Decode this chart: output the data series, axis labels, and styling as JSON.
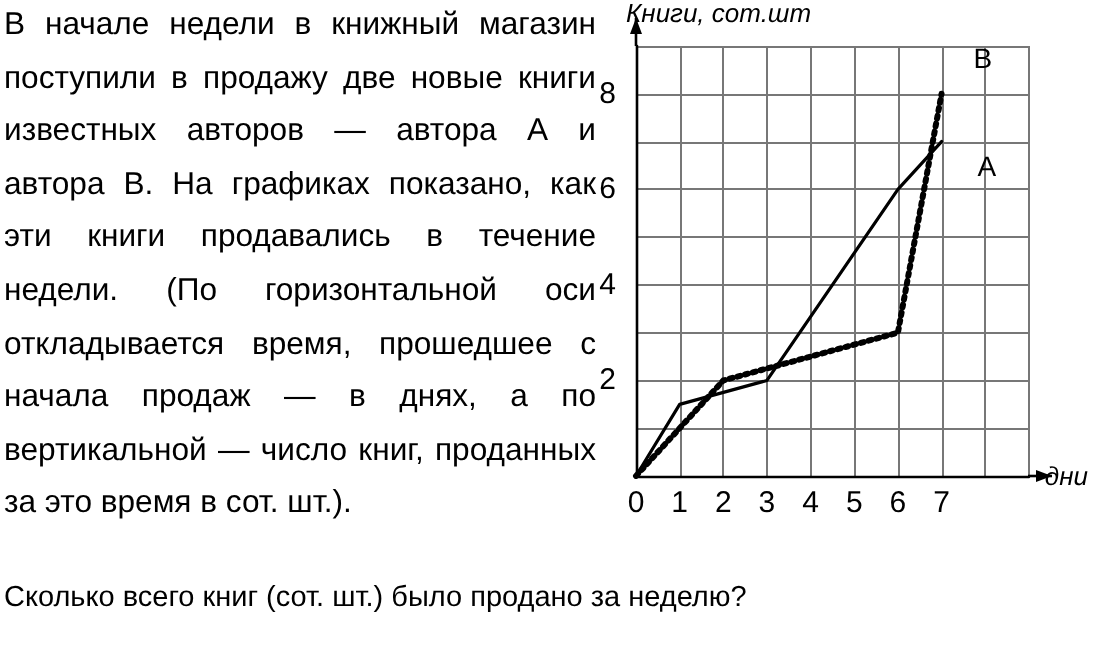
{
  "chart_data": {
    "type": "line",
    "xlabel": "дни",
    "ylabel": "Книги, сот.шт",
    "series": [
      {
        "name": "A",
        "color": "#000000",
        "line_style": "solid",
        "x": [
          0,
          1,
          3,
          6,
          7
        ],
        "values": [
          0,
          1.5,
          2,
          6,
          7
        ]
      },
      {
        "name": "B",
        "color": "#000000",
        "line_style": "dotted",
        "x": [
          0,
          1,
          2,
          6,
          7
        ],
        "values": [
          0,
          1,
          2,
          3,
          8
        ]
      }
    ],
    "xlim": [
      0,
      9
    ],
    "ylim": [
      0,
      9
    ],
    "xticks": [
      0,
      1,
      2,
      3,
      4,
      5,
      6,
      7,
      {
        "value": 8,
        "label": null
      },
      {
        "value": 9,
        "label": null
      }
    ],
    "yticks": [
      {
        "value": 0,
        "label": null
      },
      {
        "value": 1,
        "label": null
      },
      2,
      {
        "value": 3,
        "label": null
      },
      4,
      {
        "value": 5,
        "label": null
      },
      6,
      {
        "value": 7,
        "label": null
      },
      8,
      {
        "value": 9,
        "label": null
      }
    ],
    "grid": true,
    "legend": false,
    "marker": "none",
    "annotations": [
      "В начале недели в книжный магазин поступили в продажу две новые книги известных авторов — автора А и автора В. На графиках показано, как эти книги продавались в течение недели. (По горизонтальной оси откладывается время, прошедшее с начала продаж — в днях, а по вертикальной — число книг, проданных за это время в сот. шт.).",
      "Сколько всего книг (сот. шт.) было продано за неделю?"
    ]
  }
}
